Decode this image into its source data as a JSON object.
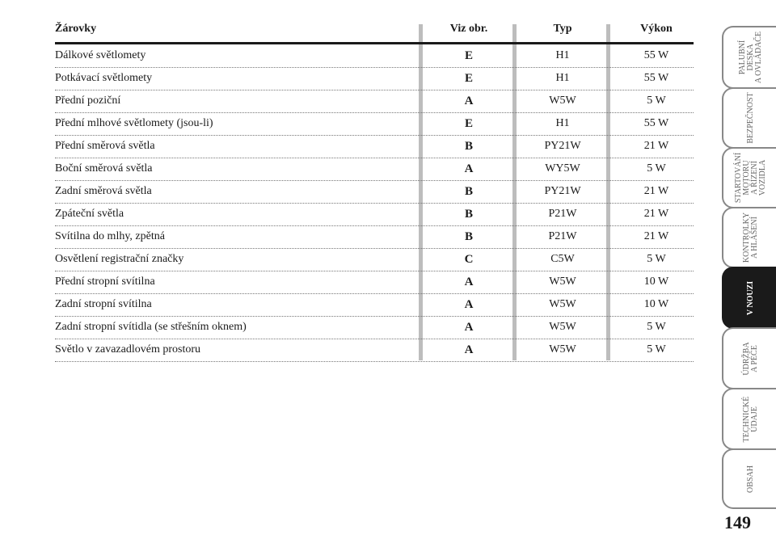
{
  "table": {
    "headers": [
      "Žárovky",
      "Viz obr.",
      "Typ",
      "Výkon"
    ],
    "rows": [
      [
        "Dálkové světlomety",
        "E",
        "H1",
        "55 W"
      ],
      [
        "Potkávací světlomety",
        "E",
        "H1",
        "55 W"
      ],
      [
        "Přední poziční",
        "A",
        "W5W",
        "5 W"
      ],
      [
        "Přední mlhové světlomety (jsou-li)",
        "E",
        "H1",
        "55 W"
      ],
      [
        "Přední směrová světla",
        "B",
        "PY21W",
        "21 W"
      ],
      [
        "Boční směrová světla",
        "A",
        "WY5W",
        "5 W"
      ],
      [
        "Zadní směrová světla",
        "B",
        "PY21W",
        "21 W"
      ],
      [
        "Zpáteční světla",
        "B",
        "P21W",
        "21 W"
      ],
      [
        "Svítilna do mlhy, zpětná",
        "B",
        "P21W",
        "21 W"
      ],
      [
        "Osvětlení registrační značky",
        "C",
        "C5W",
        "5 W"
      ],
      [
        "Přední stropní svítilna",
        "A",
        "W5W",
        "10 W"
      ],
      [
        "Zadní stropní svítilna",
        "A",
        "W5W",
        "10 W"
      ],
      [
        "Zadní stropní svítidla (se střešním oknem)",
        "A",
        "W5W",
        "5 W"
      ],
      [
        "Světlo v zavazadlovém prostoru",
        "A",
        "W5W",
        "5 W"
      ]
    ]
  },
  "side_tabs": [
    {
      "label": "PALUBNÍ\nDESKA\nA OVLÁDAČE",
      "active": false
    },
    {
      "label": "BEZPEČNOST",
      "active": false
    },
    {
      "label": "STARTOVÁNÍ\nMOTORU\nA ŘÍZENÍ\nVOZIDLA",
      "active": false
    },
    {
      "label": "KONTROLKY\nA HLÁŠENÍ",
      "active": false
    },
    {
      "label": "V NOUZI",
      "active": true
    },
    {
      "label": "ÚDRŽBA\nA PÉČE",
      "active": false
    },
    {
      "label": "TECHNICKÉ\nÚDAJE",
      "active": false
    },
    {
      "label": "OBSAH",
      "active": false
    }
  ],
  "page_number": "149"
}
